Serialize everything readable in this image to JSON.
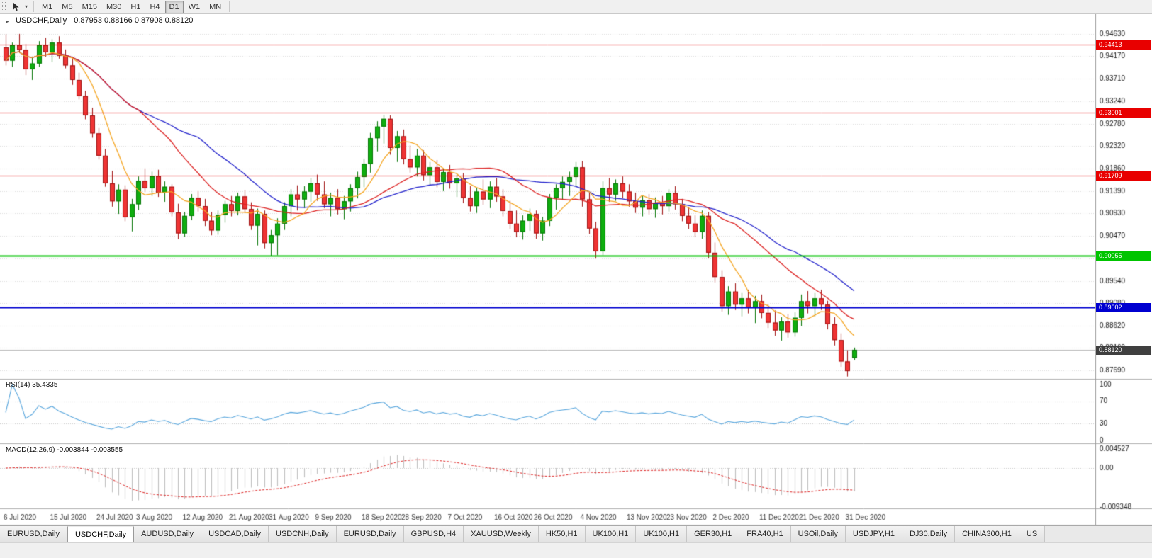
{
  "toolbar": {
    "timeframes": [
      {
        "label": "M1",
        "active": false
      },
      {
        "label": "M5",
        "active": false
      },
      {
        "label": "M15",
        "active": false
      },
      {
        "label": "M30",
        "active": false
      },
      {
        "label": "H1",
        "active": false
      },
      {
        "label": "H4",
        "active": false
      },
      {
        "label": "D1",
        "active": true
      },
      {
        "label": "W1",
        "active": false
      },
      {
        "label": "MN",
        "active": false
      }
    ]
  },
  "chart": {
    "symbol_label": "USDCHF,Daily",
    "ohlc_line": "0.87953 0.88166 0.87908 0.88120"
  },
  "indicators": {
    "rsi_label": "RSI(14) 35.4335",
    "macd_label": "MACD(12,26,9) -0.003844 -0.003555"
  },
  "chart_data": {
    "type": "candlestick",
    "symbol": "USDCHF",
    "timeframe": "Daily",
    "current_ohlc": {
      "open": 0.87953,
      "high": 0.88166,
      "low": 0.87908,
      "close": 0.8812
    },
    "y_range": [
      0.8755,
      0.9492
    ],
    "price_ticks": [
      0.9463,
      0.9417,
      0.9371,
      0.9324,
      0.9278,
      0.9232,
      0.9186,
      0.9139,
      0.9093,
      0.9047,
      0.9,
      0.8954,
      0.8908,
      0.8862,
      0.8816,
      0.8769
    ],
    "date_labels": [
      {
        "i": 0,
        "label": "6 Jul 2020"
      },
      {
        "i": 7,
        "label": "15 Jul 2020"
      },
      {
        "i": 14,
        "label": "24 Jul 2020"
      },
      {
        "i": 20,
        "label": "3 Aug 2020"
      },
      {
        "i": 27,
        "label": "12 Aug 2020"
      },
      {
        "i": 34,
        "label": "21 Aug 2020"
      },
      {
        "i": 40,
        "label": "31 Aug 2020"
      },
      {
        "i": 47,
        "label": "9 Sep 2020"
      },
      {
        "i": 54,
        "label": "18 Sep 2020"
      },
      {
        "i": 60,
        "label": "28 Sep 2020"
      },
      {
        "i": 67,
        "label": "7 Oct 2020"
      },
      {
        "i": 74,
        "label": "16 Oct 2020"
      },
      {
        "i": 80,
        "label": "26 Oct 2020"
      },
      {
        "i": 87,
        "label": "4 Nov 2020"
      },
      {
        "i": 94,
        "label": "13 Nov 2020"
      },
      {
        "i": 100,
        "label": "23 Nov 2020"
      },
      {
        "i": 107,
        "label": "2 Dec 2020"
      },
      {
        "i": 114,
        "label": "11 Dec 2020"
      },
      {
        "i": 120,
        "label": "21 Dec 2020"
      },
      {
        "i": 127,
        "label": "31 Dec 2020"
      }
    ],
    "levels": [
      {
        "price": 0.94413,
        "label": "0.94413",
        "color": "#e80000",
        "width": 1
      },
      {
        "price": 0.93001,
        "label": "0.93001",
        "color": "#e80000",
        "width": 1
      },
      {
        "price": 0.91709,
        "label": "0.91709",
        "color": "#e80000",
        "width": 1
      },
      {
        "price": 0.90055,
        "label": "0.90055",
        "color": "#00c400",
        "width": 2
      },
      {
        "price": 0.89002,
        "label": "0.89002",
        "color": "#0000d0",
        "width": 2
      }
    ],
    "current_price": {
      "value": 0.8812,
      "label": "0.88120",
      "badge_color": "#3f3f3f",
      "line_color": "#b8b8b8"
    },
    "bull": {
      "fill": "#0fae0f",
      "stroke": "#057505"
    },
    "bear": {
      "fill": "#ef3434",
      "stroke": "#a01212"
    },
    "moving_averages": [
      {
        "name": "slow",
        "period": 30,
        "color": "#2222cc"
      },
      {
        "name": "medium",
        "period": 21,
        "color": "#dd2222"
      },
      {
        "name": "fast",
        "period": 7,
        "color": "#f5a623"
      }
    ],
    "rsi": {
      "period": 14,
      "current": 35.4335,
      "color": "#58a6dd",
      "axis": [
        100,
        70,
        30,
        0
      ],
      "grid": [
        70,
        30
      ]
    },
    "macd": {
      "fast": 12,
      "slow": 26,
      "signal": 9,
      "main": -0.003844,
      "signal_value": -0.003555,
      "hist_color": "#bdbdbd",
      "signal_color": "#dd2222",
      "axis": [
        {
          "v": 0.004527,
          "label": "0.004527"
        },
        {
          "v": 0,
          "label": "0.00"
        },
        {
          "v": -0.009348,
          "label": "-0.009348"
        }
      ]
    },
    "candles": [
      [
        0.9435,
        0.9462,
        0.9398,
        0.9408
      ],
      [
        0.9408,
        0.9445,
        0.9395,
        0.944
      ],
      [
        0.944,
        0.9463,
        0.9424,
        0.943
      ],
      [
        0.943,
        0.9442,
        0.9378,
        0.939
      ],
      [
        0.939,
        0.9415,
        0.9368,
        0.9402
      ],
      [
        0.9402,
        0.9448,
        0.9395,
        0.944
      ],
      [
        0.944,
        0.9455,
        0.9416,
        0.9425
      ],
      [
        0.9425,
        0.9452,
        0.9405,
        0.9445
      ],
      [
        0.9445,
        0.9458,
        0.9412,
        0.9418
      ],
      [
        0.9418,
        0.9431,
        0.9392,
        0.9398
      ],
      [
        0.9398,
        0.9412,
        0.9358,
        0.9368
      ],
      [
        0.9368,
        0.9383,
        0.9328,
        0.9335
      ],
      [
        0.9335,
        0.9346,
        0.9287,
        0.9295
      ],
      [
        0.9295,
        0.9311,
        0.9249,
        0.9258
      ],
      [
        0.9258,
        0.9269,
        0.9204,
        0.9212
      ],
      [
        0.9212,
        0.9226,
        0.9148,
        0.9155
      ],
      [
        0.9155,
        0.9181,
        0.9107,
        0.9118
      ],
      [
        0.9118,
        0.9153,
        0.9092,
        0.9142
      ],
      [
        0.9142,
        0.9151,
        0.9077,
        0.9085
      ],
      [
        0.9085,
        0.9123,
        0.9056,
        0.9112
      ],
      [
        0.9112,
        0.9169,
        0.91,
        0.916
      ],
      [
        0.916,
        0.9186,
        0.9137,
        0.9145
      ],
      [
        0.9145,
        0.9179,
        0.9129,
        0.917
      ],
      [
        0.917,
        0.9183,
        0.9127,
        0.9136
      ],
      [
        0.9136,
        0.9159,
        0.9117,
        0.9148
      ],
      [
        0.9148,
        0.9153,
        0.9087,
        0.9095
      ],
      [
        0.9095,
        0.9113,
        0.904,
        0.9052
      ],
      [
        0.9052,
        0.9096,
        0.9045,
        0.9088
      ],
      [
        0.9088,
        0.9133,
        0.9079,
        0.9125
      ],
      [
        0.9125,
        0.9139,
        0.9097,
        0.9108
      ],
      [
        0.9108,
        0.9123,
        0.9067,
        0.9078
      ],
      [
        0.9078,
        0.9096,
        0.9048,
        0.9058
      ],
      [
        0.9058,
        0.9099,
        0.9049,
        0.909
      ],
      [
        0.909,
        0.9119,
        0.9074,
        0.9112
      ],
      [
        0.9112,
        0.9129,
        0.9087,
        0.9098
      ],
      [
        0.9098,
        0.9136,
        0.9089,
        0.9128
      ],
      [
        0.9128,
        0.9141,
        0.9094,
        0.9102
      ],
      [
        0.9102,
        0.9116,
        0.9059,
        0.9068
      ],
      [
        0.9068,
        0.9103,
        0.9027,
        0.9092
      ],
      [
        0.9092,
        0.9099,
        0.9021,
        0.9032
      ],
      [
        0.9032,
        0.9059,
        0.9005,
        0.9048
      ],
      [
        0.9048,
        0.9083,
        0.9007,
        0.9072
      ],
      [
        0.9072,
        0.9116,
        0.9059,
        0.9108
      ],
      [
        0.9108,
        0.9143,
        0.9087,
        0.9132
      ],
      [
        0.9132,
        0.9151,
        0.9099,
        0.9122
      ],
      [
        0.9122,
        0.9149,
        0.9104,
        0.9138
      ],
      [
        0.9138,
        0.9166,
        0.9117,
        0.9155
      ],
      [
        0.9155,
        0.9173,
        0.9119,
        0.9132
      ],
      [
        0.9132,
        0.9159,
        0.9104,
        0.9112
      ],
      [
        0.9112,
        0.9136,
        0.9087,
        0.9125
      ],
      [
        0.9125,
        0.9143,
        0.9091,
        0.9102
      ],
      [
        0.9102,
        0.9129,
        0.9081,
        0.9118
      ],
      [
        0.9118,
        0.9153,
        0.9097,
        0.9145
      ],
      [
        0.9145,
        0.9179,
        0.9124,
        0.9168
      ],
      [
        0.9168,
        0.9206,
        0.9147,
        0.9195
      ],
      [
        0.9195,
        0.9259,
        0.9177,
        0.9248
      ],
      [
        0.9248,
        0.9283,
        0.9221,
        0.9272
      ],
      [
        0.9272,
        0.9296,
        0.9237,
        0.9288
      ],
      [
        0.9288,
        0.9295,
        0.9214,
        0.9228
      ],
      [
        0.9228,
        0.9263,
        0.9199,
        0.9252
      ],
      [
        0.9252,
        0.9266,
        0.9194,
        0.9205
      ],
      [
        0.9205,
        0.9233,
        0.9177,
        0.9188
      ],
      [
        0.9188,
        0.9226,
        0.9169,
        0.9212
      ],
      [
        0.9212,
        0.9223,
        0.9161,
        0.9172
      ],
      [
        0.9172,
        0.9199,
        0.9151,
        0.9188
      ],
      [
        0.9188,
        0.9203,
        0.9147,
        0.9158
      ],
      [
        0.9158,
        0.9186,
        0.9139,
        0.9178
      ],
      [
        0.9178,
        0.9193,
        0.9144,
        0.9155
      ],
      [
        0.9155,
        0.9173,
        0.9127,
        0.9165
      ],
      [
        0.9165,
        0.9176,
        0.9114,
        0.9125
      ],
      [
        0.9125,
        0.9149,
        0.9097,
        0.9108
      ],
      [
        0.9108,
        0.9146,
        0.9094,
        0.9138
      ],
      [
        0.9138,
        0.9163,
        0.9111,
        0.9122
      ],
      [
        0.9122,
        0.9159,
        0.9104,
        0.9148
      ],
      [
        0.9148,
        0.9166,
        0.9117,
        0.9128
      ],
      [
        0.9128,
        0.9143,
        0.9087,
        0.9098
      ],
      [
        0.9098,
        0.9119,
        0.9061,
        0.9072
      ],
      [
        0.9072,
        0.9099,
        0.9044,
        0.9055
      ],
      [
        0.9055,
        0.9089,
        0.9039,
        0.9078
      ],
      [
        0.9078,
        0.9103,
        0.9057,
        0.9092
      ],
      [
        0.9092,
        0.9099,
        0.9041,
        0.9052
      ],
      [
        0.9052,
        0.9086,
        0.9037,
        0.9078
      ],
      [
        0.9078,
        0.9133,
        0.9067,
        0.9125
      ],
      [
        0.9125,
        0.9153,
        0.9101,
        0.9145
      ],
      [
        0.9145,
        0.9169,
        0.9121,
        0.9158
      ],
      [
        0.9158,
        0.9179,
        0.9129,
        0.9168
      ],
      [
        0.9168,
        0.9199,
        0.9147,
        0.9188
      ],
      [
        0.9188,
        0.9201,
        0.9107,
        0.9122
      ],
      [
        0.9122,
        0.9136,
        0.9051,
        0.9062
      ],
      [
        0.9062,
        0.9076,
        0.9,
        0.9015
      ],
      [
        0.9015,
        0.9159,
        0.9007,
        0.9145
      ],
      [
        0.9145,
        0.9166,
        0.9117,
        0.9132
      ],
      [
        0.9132,
        0.9163,
        0.9119,
        0.9155
      ],
      [
        0.9155,
        0.9169,
        0.9124,
        0.9138
      ],
      [
        0.9138,
        0.9153,
        0.9107,
        0.9118
      ],
      [
        0.9118,
        0.9136,
        0.9094,
        0.9105
      ],
      [
        0.9105,
        0.9129,
        0.9087,
        0.912
      ],
      [
        0.912,
        0.9133,
        0.9091,
        0.9102
      ],
      [
        0.9102,
        0.9126,
        0.9084,
        0.9115
      ],
      [
        0.9115,
        0.9129,
        0.9091,
        0.9108
      ],
      [
        0.9108,
        0.9143,
        0.9097,
        0.9135
      ],
      [
        0.9135,
        0.9149,
        0.9101,
        0.9112
      ],
      [
        0.9112,
        0.9123,
        0.9077,
        0.9088
      ],
      [
        0.9088,
        0.9106,
        0.9061,
        0.9072
      ],
      [
        0.9072,
        0.9089,
        0.9044,
        0.9055
      ],
      [
        0.9055,
        0.9099,
        0.9041,
        0.9088
      ],
      [
        0.9088,
        0.9096,
        0.9001,
        0.9012
      ],
      [
        0.9012,
        0.9033,
        0.8951,
        0.8962
      ],
      [
        0.8962,
        0.8976,
        0.8891,
        0.8902
      ],
      [
        0.8902,
        0.8943,
        0.8884,
        0.8932
      ],
      [
        0.8932,
        0.8949,
        0.8894,
        0.8905
      ],
      [
        0.8905,
        0.8929,
        0.8881,
        0.8918
      ],
      [
        0.8918,
        0.8936,
        0.8887,
        0.8898
      ],
      [
        0.8898,
        0.8923,
        0.8867,
        0.8912
      ],
      [
        0.8912,
        0.8926,
        0.8877,
        0.8888
      ],
      [
        0.8888,
        0.8906,
        0.8857,
        0.8868
      ],
      [
        0.8868,
        0.8893,
        0.8841,
        0.8852
      ],
      [
        0.8852,
        0.8879,
        0.8831,
        0.887
      ],
      [
        0.887,
        0.8886,
        0.8837,
        0.8848
      ],
      [
        0.8848,
        0.8889,
        0.8839,
        0.8878
      ],
      [
        0.8878,
        0.8926,
        0.8861,
        0.8912
      ],
      [
        0.8912,
        0.8933,
        0.8887,
        0.8902
      ],
      [
        0.8902,
        0.8929,
        0.8881,
        0.8918
      ],
      [
        0.8918,
        0.8936,
        0.8894,
        0.8905
      ],
      [
        0.8905,
        0.8913,
        0.8854,
        0.8865
      ],
      [
        0.8865,
        0.8879,
        0.8821,
        0.8832
      ],
      [
        0.8832,
        0.8846,
        0.8777,
        0.8788
      ],
      [
        0.8788,
        0.8811,
        0.8757,
        0.8768
      ],
      [
        0.87953,
        0.88166,
        0.87908,
        0.8812
      ]
    ]
  },
  "tabs": [
    {
      "label": "EURUSD,Daily",
      "active": false
    },
    {
      "label": "USDCHF,Daily",
      "active": true
    },
    {
      "label": "AUDUSD,Daily",
      "active": false
    },
    {
      "label": "USDCAD,Daily",
      "active": false
    },
    {
      "label": "USDCNH,Daily",
      "active": false
    },
    {
      "label": "EURUSD,Daily",
      "active": false
    },
    {
      "label": "GBPUSD,H4",
      "active": false
    },
    {
      "label": "XAUUSD,Weekly",
      "active": false
    },
    {
      "label": "HK50,H1",
      "active": false
    },
    {
      "label": "UK100,H1",
      "active": false
    },
    {
      "label": "UK100,H1",
      "active": false
    },
    {
      "label": "GER30,H1",
      "active": false
    },
    {
      "label": "FRA40,H1",
      "active": false
    },
    {
      "label": "USOil,Daily",
      "active": false
    },
    {
      "label": "USDJPY,H1",
      "active": false
    },
    {
      "label": "DJ30,Daily",
      "active": false
    },
    {
      "label": "CHINA300,H1",
      "active": false
    },
    {
      "label": "US",
      "active": false
    }
  ]
}
